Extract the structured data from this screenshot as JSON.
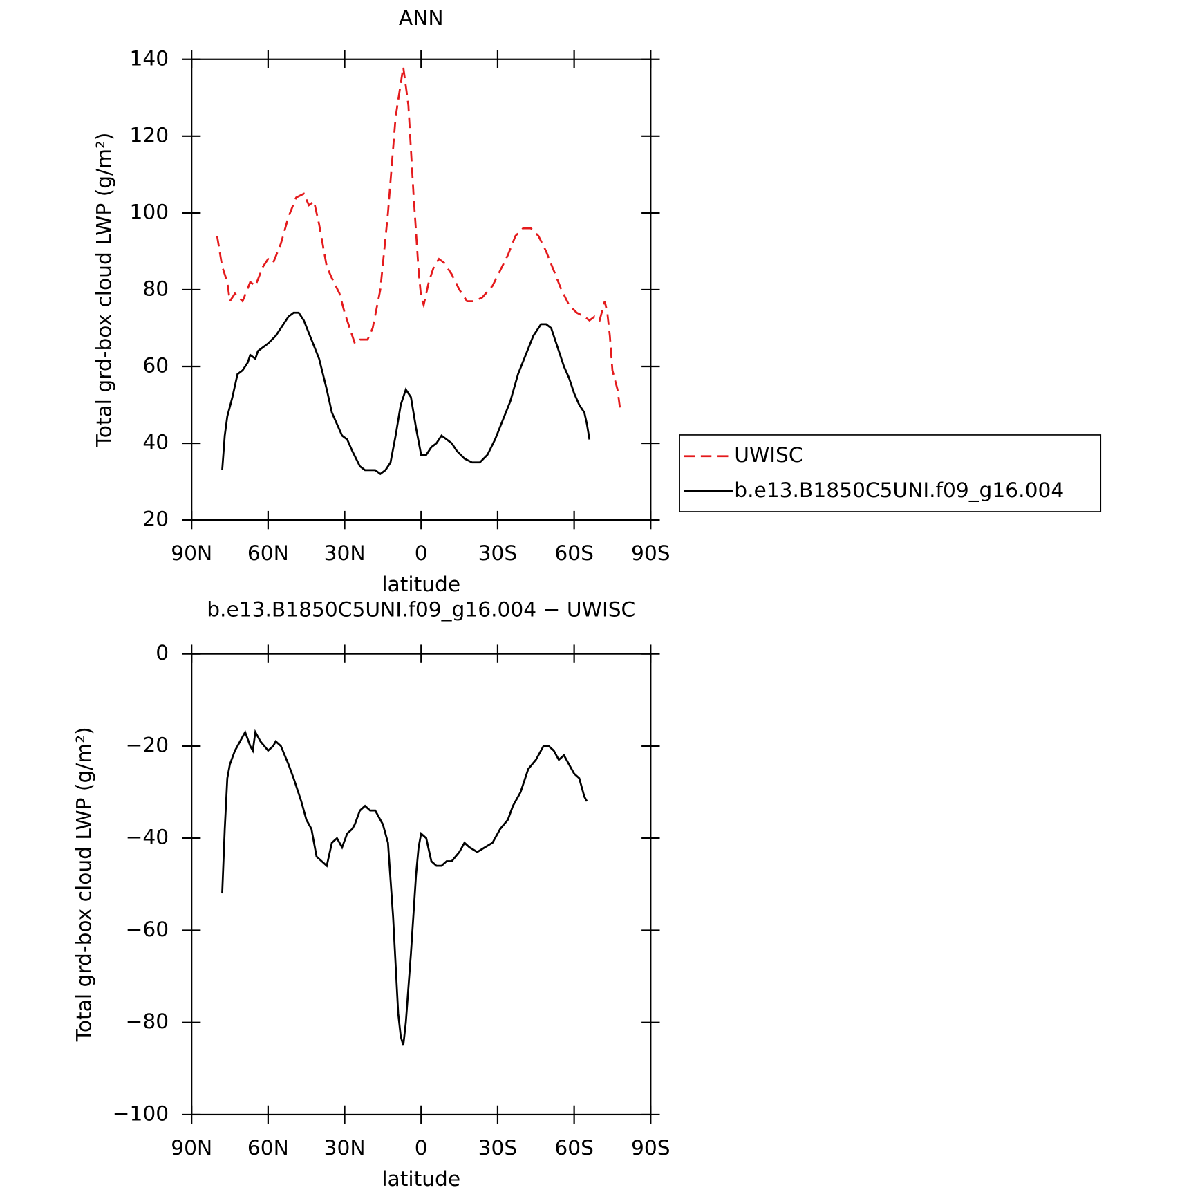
{
  "chart_data": [
    {
      "type": "line",
      "title": "ANN",
      "xlabel": "latitude",
      "ylabel": "Total grd-box cloud LWP (g/m²)",
      "xlim": [
        90,
        -90
      ],
      "xticks": [
        {
          "value": 90,
          "label": "90N"
        },
        {
          "value": 60,
          "label": "60N"
        },
        {
          "value": 30,
          "label": "30N"
        },
        0,
        {
          "value": -30,
          "label": "30S"
        },
        {
          "value": -60,
          "label": "60S"
        },
        {
          "value": -90,
          "label": "90S"
        }
      ],
      "ylim": [
        20,
        140
      ],
      "yticks": [
        20,
        40,
        60,
        80,
        100,
        120,
        140
      ],
      "legend": "right",
      "series": [
        {
          "name": "UWISC",
          "color": "#e41a1c",
          "dash": true,
          "x": [
            80,
            78,
            76,
            75,
            73,
            70,
            67,
            65,
            62,
            60,
            58,
            55,
            52,
            49,
            46,
            44,
            42,
            40,
            37,
            35,
            32,
            30,
            28,
            26,
            24,
            21,
            19,
            16,
            13,
            10,
            7,
            5,
            3,
            1,
            0,
            -1,
            -3,
            -5,
            -7,
            -9,
            -12,
            -15,
            -18,
            -21,
            -24,
            -28,
            -31,
            -34,
            -37,
            -40,
            -43,
            -46,
            -49,
            -52,
            -55,
            -58,
            -61,
            -64,
            -66,
            -68,
            -70,
            -72,
            -73,
            -74,
            -75,
            -77,
            -78
          ],
          "values": [
            94,
            86,
            82,
            77,
            79,
            77,
            82,
            81,
            86,
            88,
            87,
            92,
            99,
            104,
            105,
            102,
            103,
            97,
            86,
            83,
            79,
            74,
            70,
            66,
            67,
            67,
            70,
            80,
            100,
            125,
            138,
            128,
            105,
            85,
            78,
            76,
            82,
            86,
            88,
            87,
            84,
            80,
            77,
            77,
            78,
            81,
            85,
            89,
            94,
            96,
            96,
            94,
            90,
            85,
            80,
            76,
            74,
            73,
            72,
            73,
            72,
            77,
            74,
            68,
            59,
            54,
            49
          ]
        },
        {
          "name": "b.e13.B1850C5UNI.f09_g16.004",
          "color": "#000000",
          "dash": false,
          "x": [
            78,
            77,
            76,
            74,
            72,
            70,
            68,
            67,
            65,
            64,
            62,
            60,
            57,
            55,
            52,
            50,
            48,
            46,
            43,
            40,
            37,
            35,
            33,
            31,
            29,
            27,
            24,
            22,
            20,
            18,
            16,
            14,
            12,
            10,
            8,
            6,
            4,
            2,
            0,
            -2,
            -4,
            -6,
            -8,
            -10,
            -12,
            -14,
            -17,
            -20,
            -23,
            -26,
            -29,
            -32,
            -35,
            -38,
            -41,
            -44,
            -47,
            -49,
            -51,
            -53,
            -56,
            -58,
            -60,
            -62,
            -64,
            -65,
            -66
          ],
          "values": [
            33,
            42,
            47,
            52,
            58,
            59,
            61,
            63,
            62,
            64,
            65,
            66,
            68,
            70,
            73,
            74,
            74,
            72,
            67,
            62,
            54,
            48,
            45,
            42,
            41,
            38,
            34,
            33,
            33,
            33,
            32,
            33,
            35,
            42,
            50,
            54,
            52,
            44,
            37,
            37,
            39,
            40,
            42,
            41,
            40,
            38,
            36,
            35,
            35,
            37,
            41,
            46,
            51,
            58,
            63,
            68,
            71,
            71,
            70,
            66,
            60,
            57,
            53,
            50,
            48,
            45,
            41
          ]
        }
      ]
    },
    {
      "type": "line",
      "title": "b.e13.B1850C5UNI.f09_g16.004 − UWISC",
      "xlabel": "latitude",
      "ylabel": "Total grd-box cloud LWP (g/m²)",
      "xlim": [
        90,
        -90
      ],
      "xticks": [
        {
          "value": 90,
          "label": "90N"
        },
        {
          "value": 60,
          "label": "60N"
        },
        {
          "value": 30,
          "label": "30N"
        },
        0,
        {
          "value": -30,
          "label": "30S"
        },
        {
          "value": -60,
          "label": "60S"
        },
        {
          "value": -90,
          "label": "90S"
        }
      ],
      "ylim": [
        -100,
        0
      ],
      "yticks": [
        {
          "value": -100,
          "label": "−100"
        },
        {
          "value": -80,
          "label": "−80"
        },
        {
          "value": -60,
          "label": "−60"
        },
        {
          "value": -40,
          "label": "−40"
        },
        {
          "value": -20,
          "label": "−20"
        },
        0
      ],
      "color": "#000000",
      "x": [
        78,
        77,
        76,
        75,
        73,
        71,
        69,
        67,
        66,
        65,
        63,
        60,
        58,
        57,
        55,
        52,
        50,
        47,
        45,
        43,
        41,
        39,
        37,
        35,
        33,
        31,
        29,
        27,
        26,
        24,
        22,
        20,
        18,
        15,
        13,
        11,
        9,
        8,
        7,
        6,
        4,
        2,
        1,
        0,
        -2,
        -4,
        -6,
        -8,
        -10,
        -12,
        -15,
        -17,
        -19,
        -22,
        -25,
        -28,
        -31,
        -34,
        -36,
        -39,
        -42,
        -45,
        -48,
        -50,
        -52,
        -54,
        -56,
        -58,
        -60,
        -62,
        -64,
        -65
      ],
      "values": [
        -52,
        -38,
        -27,
        -24,
        -21,
        -19,
        -17,
        -20,
        -21,
        -17,
        -19,
        -21,
        -20,
        -19,
        -20,
        -24,
        -27,
        -32,
        -36,
        -38,
        -44,
        -45,
        -46,
        -41,
        -40,
        -42,
        -39,
        -38,
        -37,
        -34,
        -33,
        -34,
        -34,
        -37,
        -41,
        -57,
        -78,
        -83,
        -85,
        -80,
        -65,
        -48,
        -42,
        -39,
        -40,
        -45,
        -46,
        -46,
        -45,
        -45,
        -43,
        -41,
        -42,
        -43,
        -42,
        -41,
        -38,
        -36,
        -33,
        -30,
        -25,
        -23,
        -20,
        -20,
        -21,
        -23,
        -22,
        -24,
        -26,
        -27,
        -31,
        -32
      ]
    }
  ]
}
